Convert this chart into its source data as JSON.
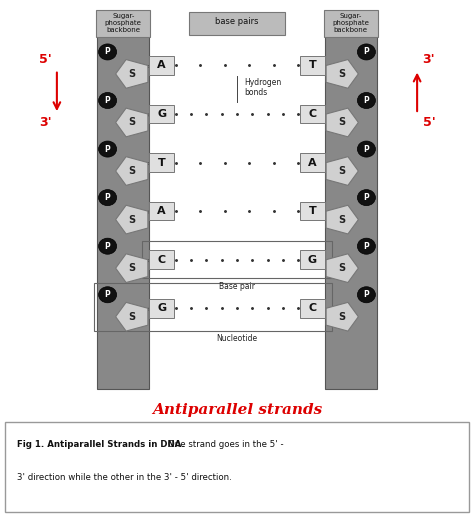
{
  "title": "Antiparallel strands",
  "caption_bold": "Fig 1. Antiparallel Strands in DNA.",
  "caption_normal": " One strand goes in the 5’ -\n3’ direction while the other in the 3’ - 5’ direction.",
  "header_left": "Sugar-\nphosphate\nbackbone",
  "header_center": "base pairs",
  "header_right": "Sugar-\nphosphate\nbackbone",
  "hydrogen_bonds": "Hydrogen\nbonds",
  "base_pair_label": "Base pair",
  "nucleotide_label": "Nucleotide",
  "base_pairs": [
    [
      "A",
      "T",
      6
    ],
    [
      "G",
      "C",
      9
    ],
    [
      "T",
      "A",
      6
    ],
    [
      "A",
      "T",
      6
    ],
    [
      "C",
      "G",
      9
    ],
    [
      "G",
      "C",
      9
    ]
  ],
  "backbone_color": "#888888",
  "backbone_edge": "#555555",
  "pentagon_fill": "#d0d0d0",
  "pentagon_stroke": "#777777",
  "circle_fill": "#111111",
  "box_fill": "#e0e0e0",
  "box_stroke": "#777777",
  "header_fill": "#bbbbbb",
  "title_color": "#dd0000",
  "bg_color": "#ffffff",
  "line_color": "#444444",
  "fig_width": 4.74,
  "fig_height": 5.15,
  "dpi": 100
}
